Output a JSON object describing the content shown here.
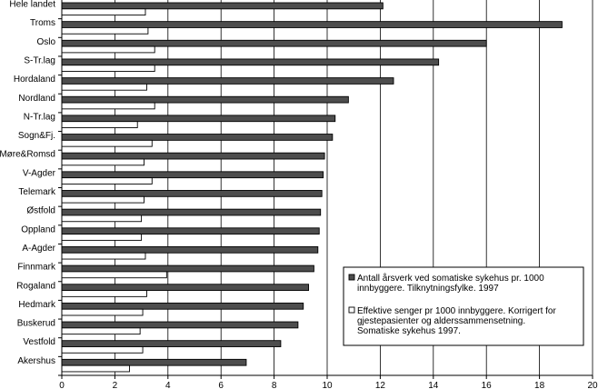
{
  "chart_data": {
    "type": "bar",
    "orientation": "horizontal",
    "categories": [
      "Hele landet",
      "Troms",
      "Oslo",
      "S-Tr.lag",
      "Hordaland",
      "Nordland",
      "N-Tr.lag",
      "Sogn&Fj.",
      "Møre&Romsd",
      "V-Agder",
      "Telemark",
      "Østfold",
      "Oppland",
      "A-Agder",
      "Finnmark",
      "Rogaland",
      "Hedmark",
      "Buskerud",
      "Vestfold",
      "Akershus"
    ],
    "series": [
      {
        "name": "Antall årsverk ved somatiske sykehus pr. 1000 innbyggere. Tilknytningsfylke. 1997",
        "color": "#4d4d4d",
        "values": [
          12.1,
          18.85,
          16.0,
          14.2,
          12.5,
          10.8,
          10.3,
          10.2,
          9.9,
          9.85,
          9.8,
          9.75,
          9.7,
          9.65,
          9.5,
          9.3,
          9.1,
          8.9,
          8.25,
          6.95
        ]
      },
      {
        "name": "Effektive senger pr 1000 innbyggere. Korrigert for gjestepasienter og alderssammensetning. Somatiske sykehus 1997.",
        "color": "#ffffff",
        "values": [
          3.15,
          3.25,
          3.5,
          3.5,
          3.2,
          3.5,
          2.85,
          3.4,
          3.1,
          3.4,
          3.1,
          3.0,
          3.0,
          3.15,
          3.95,
          3.2,
          3.05,
          2.95,
          3.05,
          2.55
        ]
      }
    ],
    "xlim": [
      0,
      20
    ],
    "xticks": [
      "0",
      "2",
      "4",
      "6",
      "8",
      "10",
      "12",
      "14",
      "16",
      "18",
      "20"
    ],
    "grid": true,
    "legend": {
      "position": "bottom-right",
      "entries": [
        [
          "Antall årsverk ved somatiske sykehus pr. 1000",
          "innbyggere. Tilknytningsfylke. 1997"
        ],
        [
          "Effektive senger pr 1000 innbyggere. Korrigert for",
          "gjestepasienter og alderssammensetning.",
          "Somatiske sykehus 1997."
        ]
      ]
    }
  }
}
